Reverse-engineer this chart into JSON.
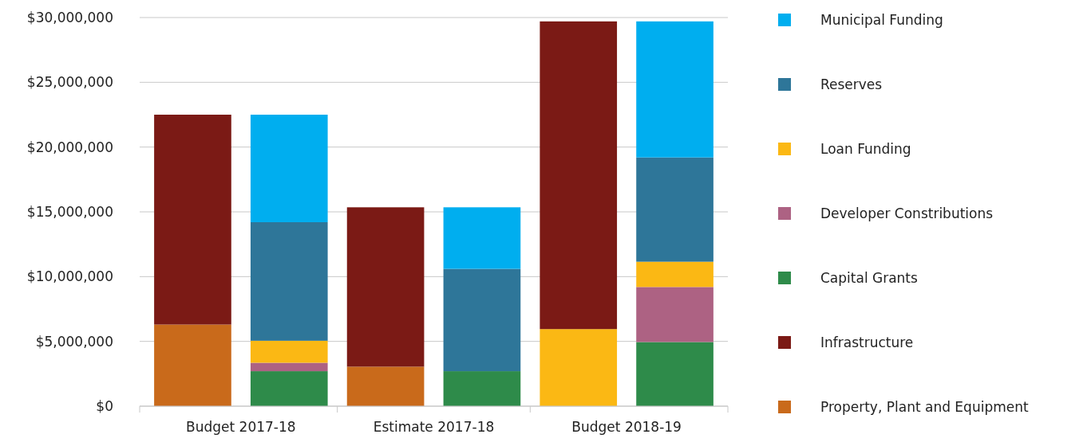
{
  "chart_data": {
    "type": "bar",
    "stacked": true,
    "categories": [
      "Budget 2017-18",
      null,
      "Estimate 2017-18",
      null,
      "Budget 2018-19",
      null
    ],
    "series": [
      {
        "name": "Property, Plant and Equipment",
        "color": "#c96a1b",
        "colors": [
          "#c96a1b",
          null,
          "#c96a1b",
          null,
          "#fbb814",
          null
        ],
        "values": [
          6300000,
          null,
          3050000,
          null,
          5950000,
          null
        ]
      },
      {
        "name": "Infrastructure",
        "color": "#7b1a15",
        "values": [
          16200000,
          null,
          12300000,
          null,
          23750000,
          null
        ]
      },
      {
        "name": "Capital Grants",
        "color": "#2e8b4a",
        "values": [
          null,
          2700000,
          null,
          2700000,
          null,
          4950000
        ]
      },
      {
        "name": "Developer Constributions",
        "color": "#ad6283",
        "values": [
          null,
          650000,
          null,
          0,
          null,
          4250000
        ]
      },
      {
        "name": "Loan Funding",
        "color": "#fbb814",
        "values": [
          null,
          1700000,
          null,
          0,
          null,
          1950000
        ]
      },
      {
        "name": "Reserves",
        "color": "#2e7699",
        "values": [
          null,
          9150000,
          null,
          7900000,
          null,
          8050000
        ]
      },
      {
        "name": "Municipal Funding",
        "color": "#00aeef",
        "values": [
          null,
          8300000,
          null,
          4750000,
          null,
          10500000
        ]
      }
    ],
    "ylim": [
      0,
      30000000
    ],
    "yticks": [
      {
        "value": 0,
        "label": "$0"
      },
      {
        "value": 5000000,
        "label": "$5,000,000"
      },
      {
        "value": 10000000,
        "label": "$10,000,000"
      },
      {
        "value": 15000000,
        "label": "$15,000,000"
      },
      {
        "value": 20000000,
        "label": "$20,000,000"
      },
      {
        "value": 25000000,
        "label": "$25,000,000"
      },
      {
        "value": 30000000,
        "label": "$30,000,000"
      }
    ],
    "grid": "y",
    "legend": "right"
  }
}
